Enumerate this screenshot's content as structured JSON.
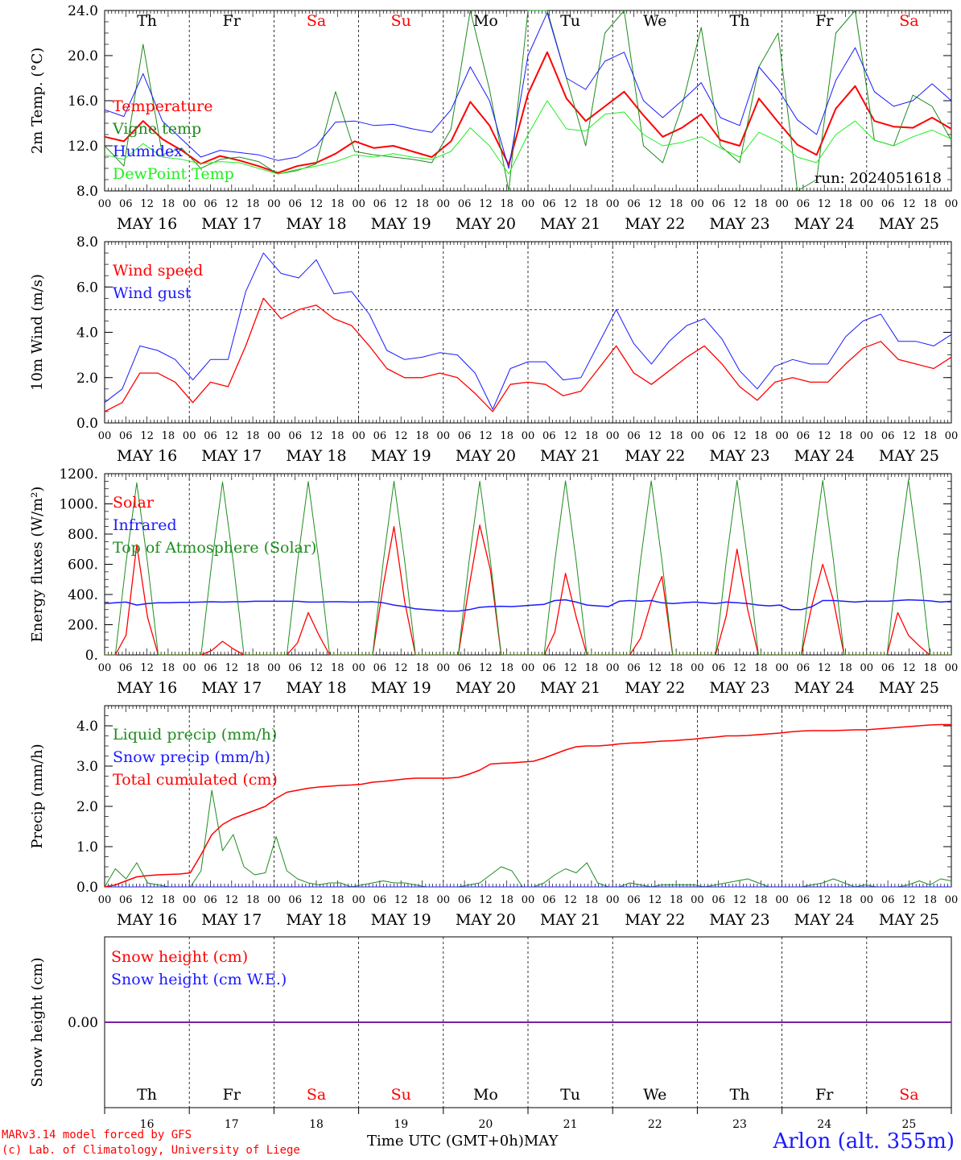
{
  "days": {
    "labels": [
      "MAY 16",
      "MAY 17",
      "MAY 18",
      "MAY 19",
      "MAY 20",
      "MAY 21",
      "MAY 22",
      "MAY 23",
      "MAY 24",
      "MAY 25"
    ],
    "weekday": [
      "Th",
      "Fr",
      "Sa",
      "Su",
      "Mo",
      "Tu",
      "We",
      "Th",
      "Fr",
      "Sa"
    ],
    "weekday_colors": [
      "#000000",
      "#000000",
      "#ff0000",
      "#ff0000",
      "#000000",
      "#000000",
      "#000000",
      "#000000",
      "#000000",
      "#ff0000"
    ],
    "day_numbers": [
      "16",
      "17",
      "18",
      "19",
      "20",
      "21",
      "22",
      "23",
      "24",
      "25"
    ],
    "hour_ticks": [
      "00",
      "06",
      "12",
      "18"
    ],
    "end_tick": "00"
  },
  "footer": {
    "credit_line1": "MARv3.14 model forced by GFS",
    "credit_line2": "(c) Lab. of Climatology, University of Liege",
    "xlabel": "Time UTC (GMT+0h)",
    "month": "MAY",
    "station": "Arlon (alt. 355m)"
  },
  "chart_data": [
    {
      "type": "line",
      "id": "temperature",
      "ylabel": "2m Temp. (°C)",
      "ylim": [
        8.0,
        24.0
      ],
      "yticks": [
        "8.0",
        "12.0",
        "16.0",
        "20.0",
        "24.0"
      ],
      "ytick_values": [
        8,
        12,
        16,
        20,
        24
      ],
      "annotation": "run: 2024051618",
      "show_weekday": true,
      "x_step_hours": 6,
      "x_start": "2024-05-16 00 UTC",
      "series": [
        {
          "name": "Temperature",
          "color": "#ff0000",
          "width": 2,
          "values": [
            12.8,
            12.4,
            14.2,
            12.6,
            11.6,
            10.4,
            11.1,
            10.7,
            10.2,
            9.6,
            10.2,
            10.5,
            11.3,
            12.4,
            11.8,
            12.0,
            11.5,
            11.0,
            12.4,
            15.9,
            13.8,
            10.3,
            16.6,
            20.3,
            16.2,
            14.2,
            15.5,
            16.8,
            14.7,
            12.8,
            13.6,
            14.8,
            12.5,
            12.0,
            16.2,
            14.1,
            12.1,
            11.2,
            15.3,
            17.3,
            14.2,
            13.7,
            13.6,
            14.5,
            13.5
          ]
        },
        {
          "name": "Vigne temp",
          "color": "#1e8c1e",
          "width": 1,
          "values": [
            12.0,
            10.2,
            21.0,
            11.2,
            11.8,
            10.0,
            10.8,
            11.0,
            10.6,
            9.5,
            9.8,
            10.4,
            16.8,
            11.5,
            11.2,
            11.0,
            10.8,
            10.5,
            13.5,
            26.0,
            17.0,
            8.0,
            26.0,
            28.0,
            18.0,
            12.0,
            22.0,
            26.0,
            12.0,
            10.5,
            15.5,
            22.5,
            12.0,
            10.5,
            19.0,
            22.0,
            8.0,
            9.0,
            22.0,
            26.0,
            12.5,
            12.0,
            16.5,
            15.5,
            12.5
          ]
        },
        {
          "name": "Humidex",
          "color": "#1a1aff",
          "width": 1,
          "values": [
            15.2,
            14.6,
            18.4,
            14.2,
            12.6,
            11.0,
            11.6,
            11.4,
            11.2,
            10.7,
            11.0,
            12.0,
            14.1,
            14.2,
            13.8,
            13.9,
            13.5,
            13.2,
            15.2,
            19.0,
            16.0,
            10.0,
            20.0,
            23.8,
            18.0,
            17.0,
            19.5,
            20.3,
            16.0,
            14.5,
            16.0,
            17.6,
            14.5,
            13.8,
            19.0,
            17.0,
            14.3,
            13.0,
            17.8,
            20.7,
            16.8,
            15.5,
            16.0,
            17.5,
            16.0
          ]
        },
        {
          "name": "DewPoint Temp",
          "color": "#22ee22",
          "width": 1,
          "values": [
            11.2,
            10.8,
            12.2,
            11.0,
            10.8,
            10.4,
            10.6,
            10.5,
            10.0,
            9.5,
            9.9,
            10.2,
            10.6,
            11.2,
            11.0,
            11.3,
            11.0,
            10.8,
            11.5,
            13.6,
            12.0,
            9.5,
            13.0,
            16.0,
            13.5,
            13.3,
            14.8,
            15.0,
            13.0,
            12.0,
            12.3,
            12.8,
            11.8,
            11.0,
            13.2,
            12.4,
            11.0,
            10.5,
            13.0,
            14.2,
            12.5,
            12.0,
            12.8,
            13.4,
            12.6
          ]
        }
      ]
    },
    {
      "type": "line",
      "id": "wind",
      "ylabel": "10m Wind (m/s)",
      "ylim": [
        0,
        8
      ],
      "yticks": [
        "0.0",
        "2.0",
        "4.0",
        "6.0",
        "8.0"
      ],
      "ytick_values": [
        0,
        2,
        4,
        6,
        8
      ],
      "reference_line": 5.0,
      "show_weekday": false,
      "x_step_hours": 6,
      "series": [
        {
          "name": "Wind speed",
          "color": "#ff0000",
          "width": 1.3,
          "values": [
            0.5,
            0.9,
            2.2,
            2.2,
            1.8,
            0.9,
            1.8,
            1.6,
            3.4,
            5.5,
            4.6,
            5.0,
            5.2,
            4.6,
            4.3,
            3.4,
            2.4,
            2.0,
            2.0,
            2.2,
            2.0,
            1.3,
            0.5,
            1.7,
            1.8,
            1.7,
            1.2,
            1.4,
            2.4,
            3.4,
            2.2,
            1.7,
            2.3,
            2.9,
            3.4,
            2.6,
            1.6,
            1.0,
            1.8,
            2.0,
            1.8,
            1.8,
            2.6,
            3.3,
            3.6,
            2.8,
            2.6,
            2.4,
            2.9
          ]
        },
        {
          "name": "Wind gust",
          "color": "#1a1aff",
          "width": 1,
          "values": [
            0.9,
            1.5,
            3.4,
            3.2,
            2.8,
            1.9,
            2.8,
            2.8,
            5.8,
            7.5,
            6.6,
            6.4,
            7.2,
            5.7,
            5.8,
            4.8,
            3.2,
            2.8,
            2.9,
            3.1,
            3.0,
            2.2,
            0.6,
            2.4,
            2.7,
            2.7,
            1.9,
            2.0,
            3.5,
            5.0,
            3.5,
            2.6,
            3.6,
            4.3,
            4.6,
            3.7,
            2.3,
            1.5,
            2.5,
            2.8,
            2.6,
            2.6,
            3.8,
            4.5,
            4.8,
            3.6,
            3.6,
            3.4,
            3.9
          ]
        }
      ]
    },
    {
      "type": "line",
      "id": "energy",
      "ylabel": "Energy fluxes (W/m²)",
      "ylim": [
        0,
        1200
      ],
      "yticks": [
        "0.",
        "200.",
        "400.",
        "600.",
        "800.",
        "1000.",
        "1200."
      ],
      "ytick_values": [
        0,
        200,
        400,
        600,
        800,
        1000,
        1200
      ],
      "show_weekday": false,
      "x_step_hours": 3,
      "series": [
        {
          "name": "Solar",
          "color": "#ff0000",
          "width": 1.3,
          "values": [
            0,
            0,
            130,
            730,
            250,
            0,
            0,
            0,
            0,
            0,
            30,
            90,
            40,
            0,
            0,
            0,
            0,
            0,
            80,
            280,
            130,
            0,
            0,
            0,
            0,
            0,
            460,
            850,
            350,
            0,
            0,
            0,
            0,
            0,
            450,
            860,
            560,
            0,
            0,
            0,
            0,
            0,
            150,
            540,
            250,
            0,
            0,
            0,
            0,
            0,
            110,
            350,
            520,
            0,
            0,
            0,
            0,
            0,
            260,
            700,
            300,
            0,
            0,
            0,
            0,
            0,
            330,
            600,
            360,
            0,
            0,
            0,
            0,
            0,
            280,
            130,
            60,
            0,
            0,
            0
          ]
        },
        {
          "name": "Infrared",
          "color": "#1a1aff",
          "width": 1.5,
          "values": [
            340,
            345,
            350,
            330,
            340,
            345,
            345,
            348,
            348,
            350,
            352,
            350,
            352,
            352,
            355,
            355,
            355,
            355,
            355,
            350,
            350,
            352,
            352,
            350,
            350,
            352,
            345,
            330,
            320,
            305,
            300,
            295,
            290,
            290,
            300,
            315,
            320,
            322,
            320,
            325,
            330,
            335,
            360,
            365,
            350,
            330,
            325,
            320,
            355,
            360,
            355,
            360,
            345,
            340,
            345,
            350,
            345,
            340,
            350,
            345,
            340,
            330,
            325,
            330,
            300,
            300,
            320,
            360,
            360,
            355,
            350,
            355,
            355,
            355,
            360,
            365,
            362,
            358,
            350,
            355
          ]
        },
        {
          "name": "Top of Atmosphere (Solar)",
          "color": "#1e8c1e",
          "width": 1,
          "values": [
            0,
            0,
            610,
            1140,
            610,
            0,
            0,
            0,
            0,
            0,
            615,
            1145,
            615,
            0,
            0,
            0,
            0,
            0,
            615,
            1148,
            615,
            0,
            0,
            0,
            0,
            0,
            618,
            1150,
            618,
            0,
            0,
            0,
            0,
            0,
            620,
            1150,
            620,
            0,
            0,
            0,
            0,
            0,
            620,
            1152,
            620,
            0,
            0,
            0,
            0,
            0,
            622,
            1152,
            622,
            0,
            0,
            0,
            0,
            0,
            622,
            1155,
            622,
            0,
            0,
            0,
            0,
            0,
            625,
            1155,
            625,
            0,
            0,
            0,
            0,
            0,
            625,
            1158,
            625,
            0,
            0,
            0
          ]
        }
      ]
    },
    {
      "type": "line",
      "id": "precip",
      "ylabel": "Precip (mm/h)",
      "ylim": [
        0,
        4.5
      ],
      "yticks": [
        "0.0",
        "1.0",
        "2.0",
        "3.0",
        "4.0"
      ],
      "ytick_values": [
        0,
        1,
        2,
        3,
        4
      ],
      "show_weekday": false,
      "x_step_hours": 3,
      "series": [
        {
          "name": "Liquid precip (mm/h)",
          "color": "#1e8c1e",
          "width": 1,
          "values": [
            0.0,
            0.45,
            0.2,
            0.6,
            0.1,
            0.05,
            0.0,
            0.0,
            0.0,
            0.4,
            2.4,
            0.9,
            1.3,
            0.5,
            0.3,
            0.35,
            1.25,
            0.4,
            0.2,
            0.1,
            0.05,
            0.1,
            0.1,
            0.0,
            0.05,
            0.1,
            0.15,
            0.1,
            0.1,
            0.05,
            0.0,
            0.0,
            0.0,
            0.0,
            0.05,
            0.1,
            0.3,
            0.5,
            0.4,
            0.0,
            0.0,
            0.1,
            0.3,
            0.45,
            0.35,
            0.6,
            0.1,
            0.0,
            0.0,
            0.1,
            0.05,
            0.0,
            0.05,
            0.05,
            0.05,
            0.05,
            0.0,
            0.05,
            0.1,
            0.15,
            0.2,
            0.1,
            0.0,
            0.0,
            0.0,
            0.0,
            0.05,
            0.1,
            0.2,
            0.1,
            0.0,
            0.05,
            0.0,
            0.0,
            0.0,
            0.05,
            0.15,
            0.05,
            0.2,
            0.15
          ]
        },
        {
          "name": "Snow precip (mm/h)",
          "color": "#1a1aff",
          "width": 1,
          "values": [
            0,
            0,
            0,
            0,
            0,
            0,
            0,
            0,
            0,
            0,
            0,
            0,
            0,
            0,
            0,
            0,
            0,
            0,
            0,
            0,
            0,
            0,
            0,
            0,
            0,
            0,
            0,
            0,
            0,
            0,
            0,
            0,
            0,
            0,
            0,
            0,
            0,
            0,
            0,
            0,
            0,
            0,
            0,
            0,
            0,
            0,
            0,
            0,
            0,
            0,
            0,
            0,
            0,
            0,
            0,
            0,
            0,
            0,
            0,
            0,
            0,
            0,
            0,
            0,
            0,
            0,
            0,
            0,
            0,
            0,
            0,
            0,
            0,
            0,
            0,
            0,
            0,
            0,
            0,
            0
          ]
        },
        {
          "name": "Total cumulated (cm)",
          "color": "#ff0000",
          "width": 1.5,
          "values": [
            0.0,
            0.05,
            0.15,
            0.25,
            0.28,
            0.3,
            0.31,
            0.32,
            0.35,
            0.8,
            1.3,
            1.55,
            1.7,
            1.8,
            1.9,
            2.0,
            2.2,
            2.35,
            2.4,
            2.45,
            2.48,
            2.5,
            2.52,
            2.53,
            2.55,
            2.6,
            2.62,
            2.65,
            2.68,
            2.7,
            2.7,
            2.7,
            2.7,
            2.72,
            2.8,
            2.9,
            3.05,
            3.07,
            3.08,
            3.1,
            3.12,
            3.2,
            3.3,
            3.4,
            3.48,
            3.5,
            3.5,
            3.52,
            3.55,
            3.57,
            3.58,
            3.6,
            3.62,
            3.63,
            3.65,
            3.67,
            3.7,
            3.72,
            3.75,
            3.75,
            3.76,
            3.78,
            3.8,
            3.82,
            3.85,
            3.87,
            3.88,
            3.88,
            3.88,
            3.89,
            3.9,
            3.9,
            3.92,
            3.94,
            3.96,
            3.98,
            4.0,
            4.02,
            4.03,
            4.03
          ]
        }
      ]
    },
    {
      "type": "line",
      "id": "snow",
      "ylabel": "Snow height (cm)",
      "ylim": [
        -1,
        1
      ],
      "yticks": [
        "0.00"
      ],
      "ytick_values": [
        0
      ],
      "show_weekday": false,
      "x_step_hours": 24,
      "series": [
        {
          "name": "Snow height (cm)",
          "color": "#ff0000",
          "width": 1,
          "values": [
            0,
            0,
            0,
            0,
            0,
            0,
            0,
            0,
            0,
            0,
            0
          ]
        },
        {
          "name": "Snow height (cm W.E.)",
          "color": "#1a1aff",
          "width": 1,
          "values": [
            0,
            0,
            0,
            0,
            0,
            0,
            0,
            0,
            0,
            0,
            0
          ]
        }
      ]
    }
  ]
}
